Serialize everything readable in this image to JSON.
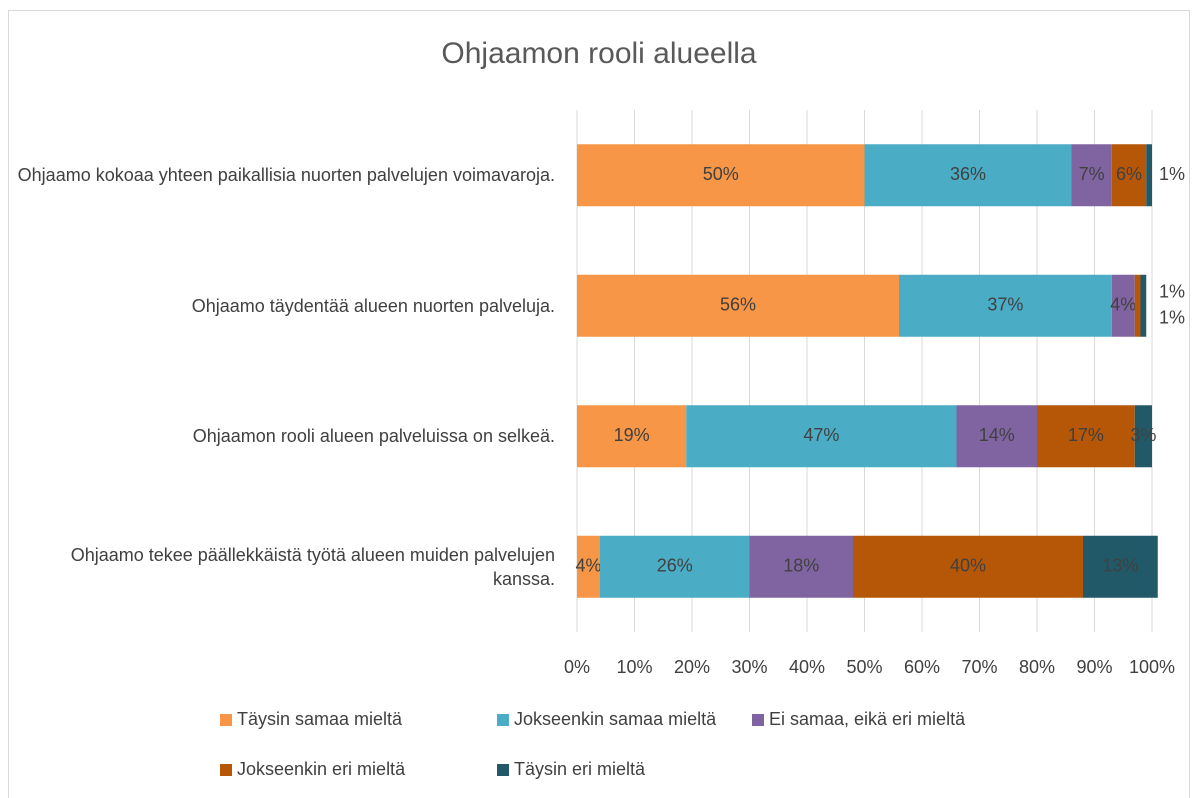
{
  "chart_data": {
    "type": "stacked_bar_horizontal_100",
    "title": "Ohjaamon rooli alueella",
    "categories": [
      "Ohjaamo kokoaa yhteen paikallisia nuorten palvelujen voimavaroja.",
      "Ohjaamo täydentää alueen nuorten palveluja.",
      "Ohjaamon rooli alueen palveluissa on selkeä.",
      "Ohjaamo tekee päällekkäistä työtä alueen muiden palvelujen kanssa."
    ],
    "series": [
      {
        "name": "Täysin samaa mieltä",
        "color": "#f79646",
        "values": [
          50,
          56,
          19,
          4
        ],
        "value_labels": [
          "50%",
          "56%",
          "19%",
          "4%"
        ]
      },
      {
        "name": "Jokseenkin samaa mieltä",
        "color": "#4bacc6",
        "values": [
          36,
          37,
          47,
          26
        ],
        "value_labels": [
          "36%",
          "37%",
          "47%",
          "26%"
        ]
      },
      {
        "name": "Ei samaa, eikä eri mieltä",
        "color": "#8064a2",
        "values": [
          7,
          4,
          14,
          18
        ],
        "value_labels": [
          "7%",
          "4%",
          "14%",
          "18%"
        ]
      },
      {
        "name": "Jokseenkin eri mieltä",
        "color": "#b65708",
        "values": [
          6,
          1,
          17,
          40
        ],
        "value_labels": [
          "6%",
          "1%",
          "17%",
          "40%"
        ]
      },
      {
        "name": "Täysin eri mieltä",
        "color": "#215968",
        "values": [
          1,
          1,
          3,
          13
        ],
        "value_labels": [
          "1%",
          "1%",
          "3%",
          "13%"
        ]
      }
    ],
    "xlim": [
      0,
      100
    ],
    "xticks": [
      {
        "value": 0,
        "label": "0%"
      },
      {
        "value": 10,
        "label": "10%"
      },
      {
        "value": 20,
        "label": "20%"
      },
      {
        "value": 30,
        "label": "30%"
      },
      {
        "value": 40,
        "label": "40%"
      },
      {
        "value": 50,
        "label": "50%"
      },
      {
        "value": 60,
        "label": "60%"
      },
      {
        "value": 70,
        "label": "70%"
      },
      {
        "value": 80,
        "label": "80%"
      },
      {
        "value": 90,
        "label": "90%"
      },
      {
        "value": 100,
        "label": "100%"
      }
    ],
    "grid": true,
    "legend": "bottom"
  }
}
